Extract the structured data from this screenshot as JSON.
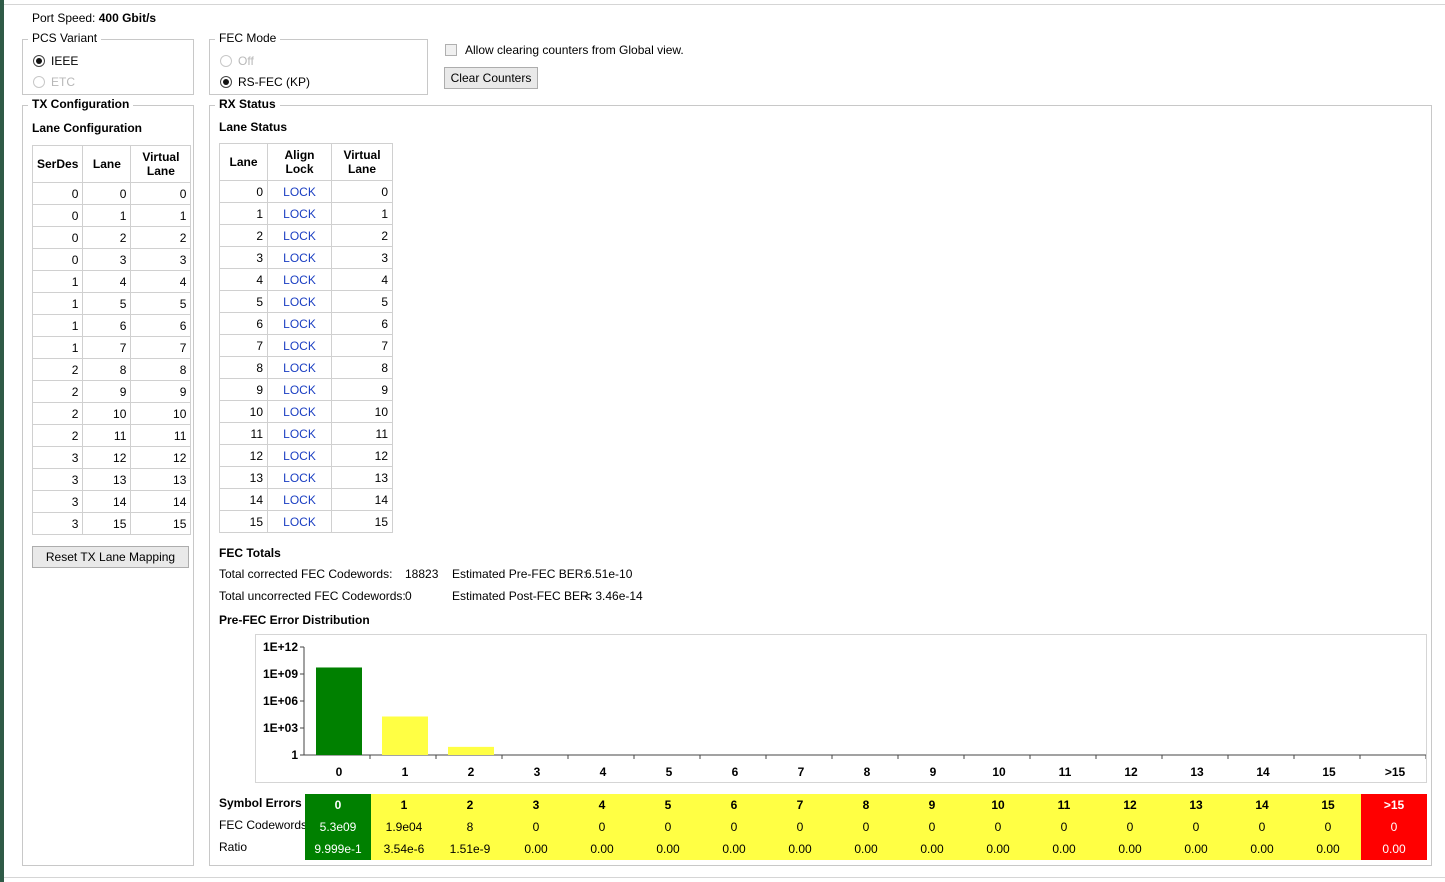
{
  "port_speed": {
    "label": "Port Speed:",
    "value": "400 Gbit/s"
  },
  "pcs_variant": {
    "title": "PCS Variant",
    "options": [
      {
        "label": "IEEE",
        "selected": true,
        "disabled": false
      },
      {
        "label": "ETC",
        "selected": false,
        "disabled": true
      }
    ]
  },
  "fec_mode": {
    "title": "FEC Mode",
    "options": [
      {
        "label": "Off",
        "selected": false,
        "disabled": true
      },
      {
        "label": "RS-FEC (KP)",
        "selected": true,
        "disabled": false
      }
    ]
  },
  "allow_clear": {
    "label": "Allow clearing counters from Global view.",
    "checked": false
  },
  "clear_counters_label": "Clear Counters",
  "tx": {
    "title": "TX Configuration",
    "lane_config_title": "Lane Configuration",
    "columns": [
      "SerDes",
      "Lane",
      "Virtual Lane"
    ],
    "rows": [
      [
        "0",
        "0",
        "0"
      ],
      [
        "0",
        "1",
        "1"
      ],
      [
        "0",
        "2",
        "2"
      ],
      [
        "0",
        "3",
        "3"
      ],
      [
        "1",
        "4",
        "4"
      ],
      [
        "1",
        "5",
        "5"
      ],
      [
        "1",
        "6",
        "6"
      ],
      [
        "1",
        "7",
        "7"
      ],
      [
        "2",
        "8",
        "8"
      ],
      [
        "2",
        "9",
        "9"
      ],
      [
        "2",
        "10",
        "10"
      ],
      [
        "2",
        "11",
        "11"
      ],
      [
        "3",
        "12",
        "12"
      ],
      [
        "3",
        "13",
        "13"
      ],
      [
        "3",
        "14",
        "14"
      ],
      [
        "3",
        "15",
        "15"
      ]
    ],
    "reset_label": "Reset TX Lane Mapping"
  },
  "rx": {
    "title": "RX Status",
    "lane_status_title": "Lane Status",
    "columns": [
      "Lane",
      "Align Lock",
      "Virtual Lane"
    ],
    "rows": [
      [
        "0",
        "LOCK",
        "0"
      ],
      [
        "1",
        "LOCK",
        "1"
      ],
      [
        "2",
        "LOCK",
        "2"
      ],
      [
        "3",
        "LOCK",
        "3"
      ],
      [
        "4",
        "LOCK",
        "4"
      ],
      [
        "5",
        "LOCK",
        "5"
      ],
      [
        "6",
        "LOCK",
        "6"
      ],
      [
        "7",
        "LOCK",
        "7"
      ],
      [
        "8",
        "LOCK",
        "8"
      ],
      [
        "9",
        "LOCK",
        "9"
      ],
      [
        "10",
        "LOCK",
        "10"
      ],
      [
        "11",
        "LOCK",
        "11"
      ],
      [
        "12",
        "LOCK",
        "12"
      ],
      [
        "13",
        "LOCK",
        "13"
      ],
      [
        "14",
        "LOCK",
        "14"
      ],
      [
        "15",
        "LOCK",
        "15"
      ]
    ]
  },
  "fec_totals": {
    "title": "FEC Totals",
    "corrected_label": "Total corrected FEC Codewords:",
    "corrected_value": "18823",
    "uncorrected_label": "Total uncorrected FEC Codewords:",
    "uncorrected_value": "0",
    "pre_ber_label": "Estimated Pre-FEC BER:",
    "pre_ber_value": "6.51e-10",
    "post_ber_label": "Estimated Post-FEC BER:",
    "post_ber_value": "< 3.46e-14"
  },
  "distribution": {
    "title": "Pre-FEC Error Distribution",
    "row_labels": [
      "Symbol Errors",
      "FEC Codewords",
      "Ratio"
    ],
    "colors": {
      "green": "#008000",
      "yellow": "#ffff44",
      "red": "#ff0000"
    },
    "cells": [
      {
        "sym": "0",
        "cw": "5.3e09",
        "ratio": "9.999e-1",
        "color": "green"
      },
      {
        "sym": "1",
        "cw": "1.9e04",
        "ratio": "3.54e-6",
        "color": "yellow"
      },
      {
        "sym": "2",
        "cw": "8",
        "ratio": "1.51e-9",
        "color": "yellow"
      },
      {
        "sym": "3",
        "cw": "0",
        "ratio": "0.00",
        "color": "yellow"
      },
      {
        "sym": "4",
        "cw": "0",
        "ratio": "0.00",
        "color": "yellow"
      },
      {
        "sym": "5",
        "cw": "0",
        "ratio": "0.00",
        "color": "yellow"
      },
      {
        "sym": "6",
        "cw": "0",
        "ratio": "0.00",
        "color": "yellow"
      },
      {
        "sym": "7",
        "cw": "0",
        "ratio": "0.00",
        "color": "yellow"
      },
      {
        "sym": "8",
        "cw": "0",
        "ratio": "0.00",
        "color": "yellow"
      },
      {
        "sym": "9",
        "cw": "0",
        "ratio": "0.00",
        "color": "yellow"
      },
      {
        "sym": "10",
        "cw": "0",
        "ratio": "0.00",
        "color": "yellow"
      },
      {
        "sym": "11",
        "cw": "0",
        "ratio": "0.00",
        "color": "yellow"
      },
      {
        "sym": "12",
        "cw": "0",
        "ratio": "0.00",
        "color": "yellow"
      },
      {
        "sym": "13",
        "cw": "0",
        "ratio": "0.00",
        "color": "yellow"
      },
      {
        "sym": "14",
        "cw": "0",
        "ratio": "0.00",
        "color": "yellow"
      },
      {
        "sym": "15",
        "cw": "0",
        "ratio": "0.00",
        "color": "yellow"
      },
      {
        "sym": ">15",
        "cw": "0",
        "ratio": "0.00",
        "color": "red"
      }
    ]
  },
  "chart_data": {
    "type": "bar",
    "scale": "log",
    "categories": [
      "0",
      "1",
      "2",
      "3",
      "4",
      "5",
      "6",
      "7",
      "8",
      "9",
      "10",
      "11",
      "12",
      "13",
      "14",
      "15",
      ">15"
    ],
    "values": [
      5300000000,
      19000,
      8,
      0,
      0,
      0,
      0,
      0,
      0,
      0,
      0,
      0,
      0,
      0,
      0,
      0,
      0
    ],
    "colors": [
      "#008000",
      "#ffff44",
      "#ffff44",
      "#ffff44",
      "#ffff44",
      "#ffff44",
      "#ffff44",
      "#ffff44",
      "#ffff44",
      "#ffff44",
      "#ffff44",
      "#ffff44",
      "#ffff44",
      "#ffff44",
      "#ffff44",
      "#ffff44",
      "#ff0000"
    ],
    "yticks": [
      {
        "value": 1,
        "label": "1"
      },
      {
        "value": 1000,
        "label": "1E+03"
      },
      {
        "value": 1000000,
        "label": "1E+06"
      },
      {
        "value": 1000000000,
        "label": "1E+09"
      },
      {
        "value": 1000000000000,
        "label": "1E+12"
      }
    ],
    "ylim": [
      1,
      1000000000000
    ],
    "grid": false,
    "title": "",
    "xlabel": "",
    "ylabel": ""
  }
}
